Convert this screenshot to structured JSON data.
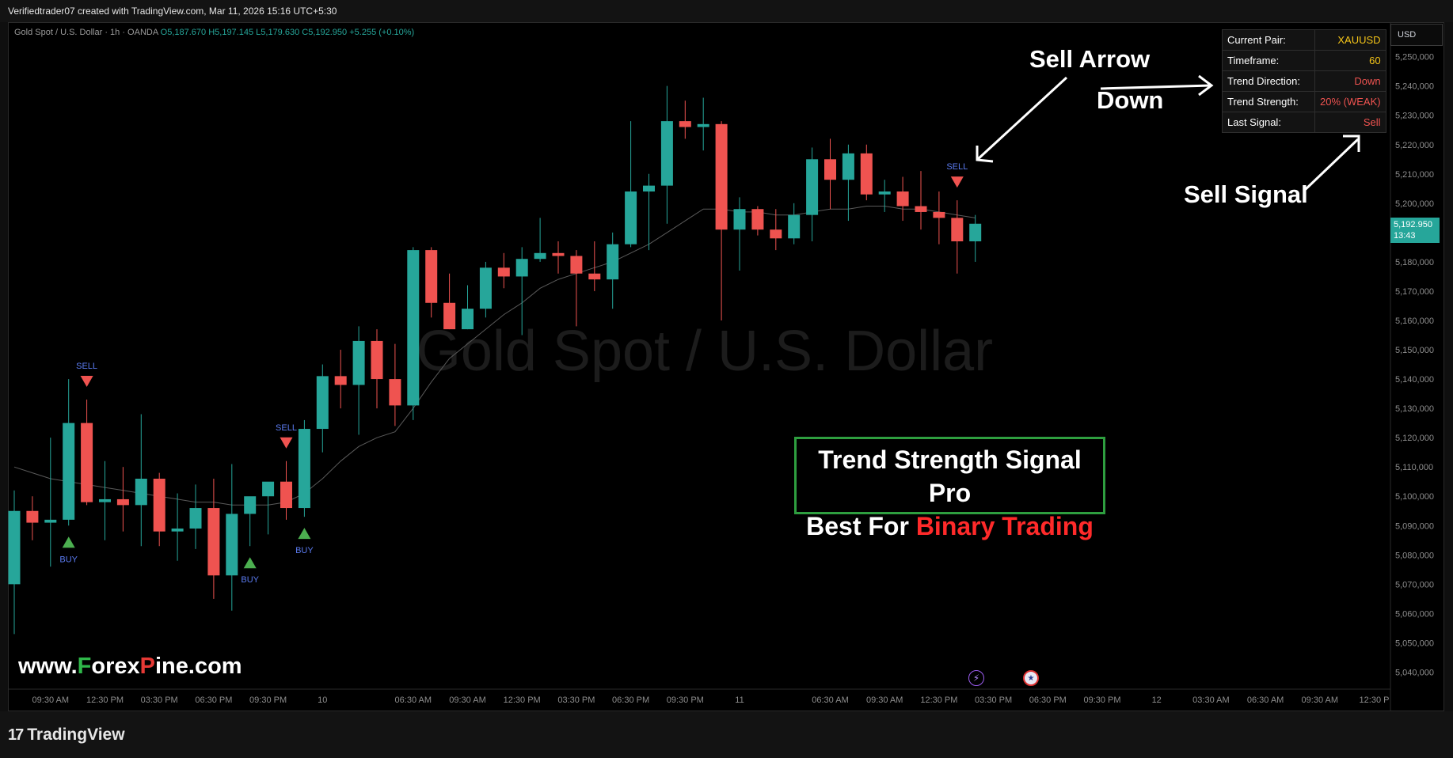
{
  "header": {
    "title": "Verifiedtrader07 created with TradingView.com, Mar 11, 2026 15:16 UTC+5:30"
  },
  "legend": {
    "symbol": "Gold Spot / U.S. Dollar · 1h · OANDA",
    "open": "O5,187.670",
    "high": "H5,197.145",
    "low": "L5,179.630",
    "close": "C5,192.950",
    "change": "+5.255 (+0.10%)"
  },
  "watermark": "Gold Spot / U.S. Dollar",
  "currency": "USD",
  "last_price": {
    "value": "5,192.950",
    "countdown": "13:43"
  },
  "info_table": {
    "rows": [
      {
        "key": "Current Pair:",
        "value": "XAUUSD",
        "color": "#f5c518"
      },
      {
        "key": "Timeframe:",
        "value": "60",
        "color": "#f5c518"
      },
      {
        "key": "Trend Direction:",
        "value": "Down",
        "color": "#ef5350"
      },
      {
        "key": "Trend Strength:",
        "value": "20% (WEAK)",
        "color": "#ef5350"
      },
      {
        "key": "Last Signal:",
        "value": "Sell",
        "color": "#ef5350"
      }
    ]
  },
  "annotations": {
    "sell_arrow": "Sell Arrow",
    "down": "Down",
    "sell_signal": "Sell Signal"
  },
  "promo": {
    "line1": "Trend Strength Signal Pro",
    "line2_prefix": "Best For ",
    "line2_highlight": "Binary Trading"
  },
  "site": {
    "p1": "www.",
    "p2": "F",
    "p3": "orex",
    "p4": "P",
    "p5": "ine.com"
  },
  "footer": {
    "brand": "TradingView",
    "logo_icon": "tradingview-logo-icon"
  },
  "colors": {
    "up": "#26a69a",
    "down": "#ef5350",
    "signal_label": "#5b7bf0",
    "buy_marker": "#4caf50",
    "sell_marker": "#ef5350"
  },
  "chart_data": {
    "type": "candlestick",
    "ylim": [
      5035,
      5258
    ],
    "y_ticks": [
      5250,
      5240,
      5230,
      5220,
      5210,
      5200,
      5190,
      5180,
      5170,
      5160,
      5150,
      5140,
      5130,
      5120,
      5110,
      5100,
      5090,
      5080,
      5070,
      5060,
      5050,
      5040
    ],
    "y_tick_labels": [
      "5,250,000",
      "5,240,000",
      "5,230,000",
      "5,220,000",
      "5,210,000",
      "5,200,000",
      "5,190,000",
      "5,180,000",
      "5,170,000",
      "5,160,000",
      "5,150,000",
      "5,140,000",
      "5,130,000",
      "5,120,000",
      "5,110,000",
      "5,100,000",
      "5,090,000",
      "5,080,000",
      "5,070,000",
      "5,060,000",
      "5,050,000",
      "5,040,000"
    ],
    "x_labels": [
      {
        "i": 2,
        "label": "09:30 AM"
      },
      {
        "i": 5,
        "label": "12:30 PM"
      },
      {
        "i": 8,
        "label": "03:30 PM"
      },
      {
        "i": 11,
        "label": "06:30 PM"
      },
      {
        "i": 14,
        "label": "09:30 PM"
      },
      {
        "i": 17,
        "label": "10"
      },
      {
        "i": 22,
        "label": "06:30 AM"
      },
      {
        "i": 25,
        "label": "09:30 AM"
      },
      {
        "i": 28,
        "label": "12:30 PM"
      },
      {
        "i": 31,
        "label": "03:30 PM"
      },
      {
        "i": 34,
        "label": "06:30 PM"
      },
      {
        "i": 37,
        "label": "09:30 PM"
      },
      {
        "i": 40,
        "label": "11"
      },
      {
        "i": 45,
        "label": "06:30 AM"
      },
      {
        "i": 48,
        "label": "09:30 AM"
      },
      {
        "i": 51,
        "label": "12:30 PM"
      },
      {
        "i": 54,
        "label": "03:30 PM"
      },
      {
        "i": 57,
        "label": "06:30 PM"
      },
      {
        "i": 60,
        "label": "09:30 PM"
      },
      {
        "i": 63,
        "label": "12"
      },
      {
        "i": 66,
        "label": "03:30 AM"
      },
      {
        "i": 69,
        "label": "06:30 AM"
      },
      {
        "i": 72,
        "label": "09:30 AM"
      },
      {
        "i": 75,
        "label": "12:30 P"
      }
    ],
    "candles": [
      {
        "o": 5070,
        "h": 5102,
        "l": 5053,
        "c": 5095
      },
      {
        "o": 5095,
        "h": 5100,
        "l": 5085,
        "c": 5091
      },
      {
        "o": 5091,
        "h": 5120,
        "l": 5076,
        "c": 5092
      },
      {
        "o": 5092,
        "h": 5140,
        "l": 5090,
        "c": 5125
      },
      {
        "o": 5125,
        "h": 5133,
        "l": 5097,
        "c": 5098
      },
      {
        "o": 5098,
        "h": 5112,
        "l": 5085,
        "c": 5099
      },
      {
        "o": 5099,
        "h": 5110,
        "l": 5088,
        "c": 5097
      },
      {
        "o": 5097,
        "h": 5128,
        "l": 5083,
        "c": 5106
      },
      {
        "o": 5106,
        "h": 5108,
        "l": 5083,
        "c": 5088
      },
      {
        "o": 5088,
        "h": 5101,
        "l": 5078,
        "c": 5089
      },
      {
        "o": 5089,
        "h": 5104,
        "l": 5082,
        "c": 5096
      },
      {
        "o": 5096,
        "h": 5106,
        "l": 5065,
        "c": 5073
      },
      {
        "o": 5073,
        "h": 5111,
        "l": 5061,
        "c": 5094
      },
      {
        "o": 5094,
        "h": 5098,
        "l": 5083,
        "c": 5100
      },
      {
        "o": 5100,
        "h": 5103,
        "l": 5087,
        "c": 5105
      },
      {
        "o": 5105,
        "h": 5112,
        "l": 5092,
        "c": 5096
      },
      {
        "o": 5096,
        "h": 5126,
        "l": 5093,
        "c": 5123
      },
      {
        "o": 5123,
        "h": 5145,
        "l": 5115,
        "c": 5141
      },
      {
        "o": 5141,
        "h": 5150,
        "l": 5130,
        "c": 5138
      },
      {
        "o": 5138,
        "h": 5158,
        "l": 5121,
        "c": 5153
      },
      {
        "o": 5153,
        "h": 5157,
        "l": 5130,
        "c": 5140
      },
      {
        "o": 5140,
        "h": 5152,
        "l": 5124,
        "c": 5131
      },
      {
        "o": 5131,
        "h": 5185,
        "l": 5126,
        "c": 5184
      },
      {
        "o": 5184,
        "h": 5185,
        "l": 5161,
        "c": 5166
      },
      {
        "o": 5166,
        "h": 5176,
        "l": 5157,
        "c": 5157
      },
      {
        "o": 5157,
        "h": 5172,
        "l": 5157,
        "c": 5164
      },
      {
        "o": 5164,
        "h": 5180,
        "l": 5161,
        "c": 5178
      },
      {
        "o": 5178,
        "h": 5183,
        "l": 5171,
        "c": 5175
      },
      {
        "o": 5175,
        "h": 5185,
        "l": 5155,
        "c": 5181
      },
      {
        "o": 5181,
        "h": 5195,
        "l": 5180,
        "c": 5183
      },
      {
        "o": 5183,
        "h": 5187,
        "l": 5176,
        "c": 5182
      },
      {
        "o": 5182,
        "h": 5184,
        "l": 5158,
        "c": 5176
      },
      {
        "o": 5176,
        "h": 5187,
        "l": 5170,
        "c": 5174
      },
      {
        "o": 5174,
        "h": 5190,
        "l": 5164,
        "c": 5186
      },
      {
        "o": 5186,
        "h": 5228,
        "l": 5185,
        "c": 5204
      },
      {
        "o": 5204,
        "h": 5210,
        "l": 5184,
        "c": 5206
      },
      {
        "o": 5206,
        "h": 5240,
        "l": 5193,
        "c": 5228
      },
      {
        "o": 5228,
        "h": 5235,
        "l": 5222,
        "c": 5226
      },
      {
        "o": 5226,
        "h": 5236,
        "l": 5218,
        "c": 5227
      },
      {
        "o": 5227,
        "h": 5228,
        "l": 5160,
        "c": 5191
      },
      {
        "o": 5191,
        "h": 5202,
        "l": 5177,
        "c": 5198
      },
      {
        "o": 5198,
        "h": 5199,
        "l": 5189,
        "c": 5191
      },
      {
        "o": 5191,
        "h": 5198,
        "l": 5184,
        "c": 5188
      },
      {
        "o": 5188,
        "h": 5200,
        "l": 5186,
        "c": 5196
      },
      {
        "o": 5196,
        "h": 5219,
        "l": 5187,
        "c": 5215
      },
      {
        "o": 5215,
        "h": 5222,
        "l": 5198,
        "c": 5208
      },
      {
        "o": 5208,
        "h": 5220,
        "l": 5194,
        "c": 5217
      },
      {
        "o": 5217,
        "h": 5220,
        "l": 5201,
        "c": 5203
      },
      {
        "o": 5203,
        "h": 5208,
        "l": 5197,
        "c": 5204
      },
      {
        "o": 5204,
        "h": 5209,
        "l": 5194,
        "c": 5199
      },
      {
        "o": 5199,
        "h": 5211,
        "l": 5191,
        "c": 5197
      },
      {
        "o": 5197,
        "h": 5204,
        "l": 5186,
        "c": 5195
      },
      {
        "o": 5195,
        "h": 5201,
        "l": 5176,
        "c": 5187
      },
      {
        "o": 5187,
        "h": 5196,
        "l": 5180,
        "c": 5193
      }
    ],
    "ema": [
      5110,
      5108,
      5106,
      5105,
      5104,
      5103,
      5102,
      5101,
      5100,
      5099,
      5098,
      5098,
      5097,
      5097,
      5097,
      5098,
      5101,
      5106,
      5112,
      5117,
      5120,
      5122,
      5130,
      5139,
      5147,
      5152,
      5157,
      5162,
      5166,
      5171,
      5174,
      5176,
      5178,
      5180,
      5183,
      5186,
      5190,
      5194,
      5198,
      5198,
      5197,
      5197,
      5196,
      5196,
      5197,
      5198,
      5198,
      5199,
      5199,
      5198,
      5198,
      5197,
      5196,
      5195
    ],
    "signals": [
      {
        "i": 3,
        "type": "BUY"
      },
      {
        "i": 4,
        "type": "SELL"
      },
      {
        "i": 13,
        "type": "BUY"
      },
      {
        "i": 15,
        "type": "SELL"
      },
      {
        "i": 16,
        "type": "BUY"
      },
      {
        "i": 52,
        "type": "SELL"
      }
    ]
  }
}
